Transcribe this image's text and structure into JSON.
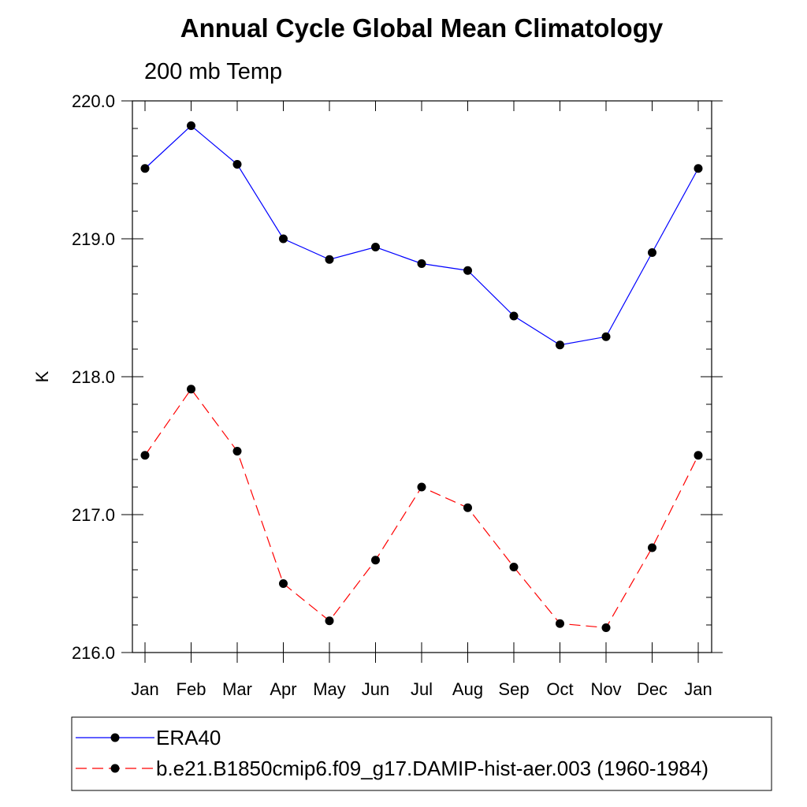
{
  "chart_data": {
    "type": "line",
    "title": "Annual Cycle Global Mean Climatology",
    "subtitle": "200 mb Temp",
    "xlabel": "",
    "ylabel": "K",
    "categories": [
      "Jan",
      "Feb",
      "Mar",
      "Apr",
      "May",
      "Jun",
      "Jul",
      "Aug",
      "Sep",
      "Oct",
      "Nov",
      "Dec",
      "Jan"
    ],
    "ylim": [
      216.0,
      220.0
    ],
    "yticks": [
      "216.0",
      "217.0",
      "218.0",
      "219.0",
      "220.0"
    ],
    "grid": false,
    "legend_position": "bottom",
    "series": [
      {
        "name": "ERA40",
        "color": "#0000ff",
        "line_style": "solid",
        "values": [
          219.51,
          219.82,
          219.54,
          219.0,
          218.85,
          218.94,
          218.82,
          218.77,
          218.44,
          218.23,
          218.29,
          218.9,
          219.51
        ]
      },
      {
        "name": "b.e21.B1850cmip6.f09_g17.DAMIP-hist-aer.003 (1960-1984)",
        "color": "#ff0000",
        "line_style": "dashed",
        "values": [
          217.43,
          217.91,
          217.46,
          216.5,
          216.23,
          216.67,
          217.2,
          217.05,
          216.62,
          216.21,
          216.18,
          216.76,
          217.43
        ]
      }
    ]
  }
}
